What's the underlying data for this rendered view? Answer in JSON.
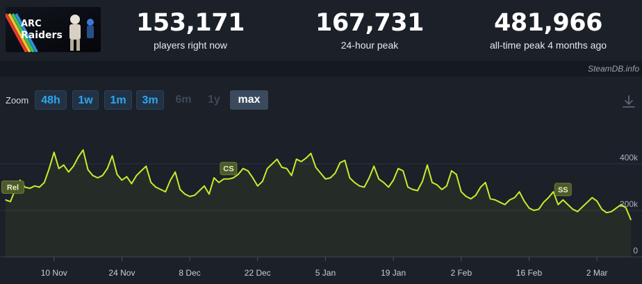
{
  "header": {
    "thumbnail_alt": "ARC Raiders",
    "stats": [
      {
        "value": "153,171",
        "label": "players right now"
      },
      {
        "value": "167,731",
        "label": "24-hour peak"
      },
      {
        "value": "481,966",
        "label": "all-time peak 4 months ago"
      }
    ]
  },
  "credit": "SteamDB.info",
  "zoom": {
    "label": "Zoom",
    "buttons": [
      {
        "label": "48h",
        "state": "enabled"
      },
      {
        "label": "1w",
        "state": "enabled"
      },
      {
        "label": "1m",
        "state": "enabled"
      },
      {
        "label": "3m",
        "state": "enabled"
      },
      {
        "label": "6m",
        "state": "disabled"
      },
      {
        "label": "1y",
        "state": "disabled"
      },
      {
        "label": "max",
        "state": "selected"
      }
    ],
    "download_icon": "download-icon"
  },
  "colors": {
    "line": "#c5ef2a",
    "accent": "#2ea6ef",
    "background": "#1b2029"
  },
  "chart_data": {
    "type": "line",
    "xlabel": "",
    "ylabel": "",
    "ylim": [
      0,
      450000
    ],
    "yticks": [
      {
        "value": 0,
        "label": "0"
      },
      {
        "value": 200000,
        "label": "200k"
      },
      {
        "value": 400000,
        "label": "400k"
      }
    ],
    "xticks": [
      {
        "label": "10 Nov",
        "day": 10
      },
      {
        "label": "24 Nov",
        "day": 24
      },
      {
        "label": "8 Dec",
        "day": 38
      },
      {
        "label": "22 Dec",
        "day": 52
      },
      {
        "label": "5 Jan",
        "day": 66
      },
      {
        "label": "19 Jan",
        "day": 80
      },
      {
        "label": "2 Feb",
        "day": 94
      },
      {
        "label": "16 Feb",
        "day": 108
      },
      {
        "label": "2 Mar",
        "day": 122
      }
    ],
    "grid": true,
    "legend": "none",
    "annotations": [
      {
        "label": "Rel",
        "day": 1.5,
        "y": 300000
      },
      {
        "label": "CS",
        "day": 46,
        "y": 380000
      },
      {
        "label": "SS",
        "day": 115,
        "y": 290000
      }
    ],
    "series": [
      {
        "values": [
          [
            0,
            245000
          ],
          [
            1,
            238000
          ],
          [
            2,
            290000
          ],
          [
            3,
            330000
          ],
          [
            4,
            300000
          ],
          [
            5,
            295000
          ],
          [
            6,
            305000
          ],
          [
            7,
            300000
          ],
          [
            8,
            320000
          ],
          [
            9,
            380000
          ],
          [
            10,
            450000
          ],
          [
            11,
            380000
          ],
          [
            12,
            395000
          ],
          [
            13,
            365000
          ],
          [
            14,
            390000
          ],
          [
            15,
            430000
          ],
          [
            16,
            460000
          ],
          [
            17,
            375000
          ],
          [
            18,
            350000
          ],
          [
            19,
            340000
          ],
          [
            20,
            350000
          ],
          [
            21,
            380000
          ],
          [
            22,
            435000
          ],
          [
            23,
            355000
          ],
          [
            24,
            330000
          ],
          [
            25,
            345000
          ],
          [
            26,
            315000
          ],
          [
            27,
            350000
          ],
          [
            28,
            370000
          ],
          [
            29,
            390000
          ],
          [
            30,
            320000
          ],
          [
            31,
            300000
          ],
          [
            32,
            290000
          ],
          [
            33,
            280000
          ],
          [
            34,
            330000
          ],
          [
            35,
            365000
          ],
          [
            36,
            290000
          ],
          [
            37,
            270000
          ],
          [
            38,
            260000
          ],
          [
            39,
            265000
          ],
          [
            40,
            285000
          ],
          [
            41,
            305000
          ],
          [
            42,
            270000
          ],
          [
            43,
            340000
          ],
          [
            44,
            320000
          ],
          [
            45,
            335000
          ],
          [
            46,
            335000
          ],
          [
            47,
            340000
          ],
          [
            48,
            355000
          ],
          [
            49,
            380000
          ],
          [
            50,
            370000
          ],
          [
            51,
            340000
          ],
          [
            52,
            305000
          ],
          [
            53,
            325000
          ],
          [
            54,
            380000
          ],
          [
            55,
            400000
          ],
          [
            56,
            420000
          ],
          [
            57,
            385000
          ],
          [
            58,
            380000
          ],
          [
            59,
            350000
          ],
          [
            60,
            420000
          ],
          [
            61,
            410000
          ],
          [
            62,
            425000
          ],
          [
            63,
            445000
          ],
          [
            64,
            385000
          ],
          [
            65,
            360000
          ],
          [
            66,
            335000
          ],
          [
            67,
            340000
          ],
          [
            68,
            360000
          ],
          [
            69,
            405000
          ],
          [
            70,
            415000
          ],
          [
            71,
            340000
          ],
          [
            72,
            320000
          ],
          [
            73,
            305000
          ],
          [
            74,
            300000
          ],
          [
            75,
            340000
          ],
          [
            76,
            390000
          ],
          [
            77,
            335000
          ],
          [
            78,
            320000
          ],
          [
            79,
            300000
          ],
          [
            80,
            330000
          ],
          [
            81,
            380000
          ],
          [
            82,
            370000
          ],
          [
            83,
            300000
          ],
          [
            84,
            290000
          ],
          [
            85,
            285000
          ],
          [
            86,
            325000
          ],
          [
            87,
            395000
          ],
          [
            88,
            320000
          ],
          [
            89,
            310000
          ],
          [
            90,
            290000
          ],
          [
            91,
            305000
          ],
          [
            92,
            370000
          ],
          [
            93,
            355000
          ],
          [
            94,
            280000
          ],
          [
            95,
            260000
          ],
          [
            96,
            250000
          ],
          [
            97,
            265000
          ],
          [
            98,
            300000
          ],
          [
            99,
            320000
          ],
          [
            100,
            250000
          ],
          [
            101,
            245000
          ],
          [
            102,
            235000
          ],
          [
            103,
            225000
          ],
          [
            104,
            245000
          ],
          [
            105,
            255000
          ],
          [
            106,
            280000
          ],
          [
            107,
            240000
          ],
          [
            108,
            210000
          ],
          [
            109,
            200000
          ],
          [
            110,
            205000
          ],
          [
            111,
            235000
          ],
          [
            112,
            255000
          ],
          [
            113,
            280000
          ],
          [
            114,
            225000
          ],
          [
            115,
            245000
          ],
          [
            116,
            225000
          ],
          [
            117,
            205000
          ],
          [
            118,
            195000
          ],
          [
            119,
            215000
          ],
          [
            120,
            235000
          ],
          [
            121,
            255000
          ],
          [
            122,
            240000
          ],
          [
            123,
            205000
          ],
          [
            124,
            190000
          ],
          [
            125,
            195000
          ],
          [
            126,
            210000
          ],
          [
            127,
            225000
          ],
          [
            128,
            210000
          ],
          [
            129,
            160000
          ]
        ]
      }
    ]
  }
}
